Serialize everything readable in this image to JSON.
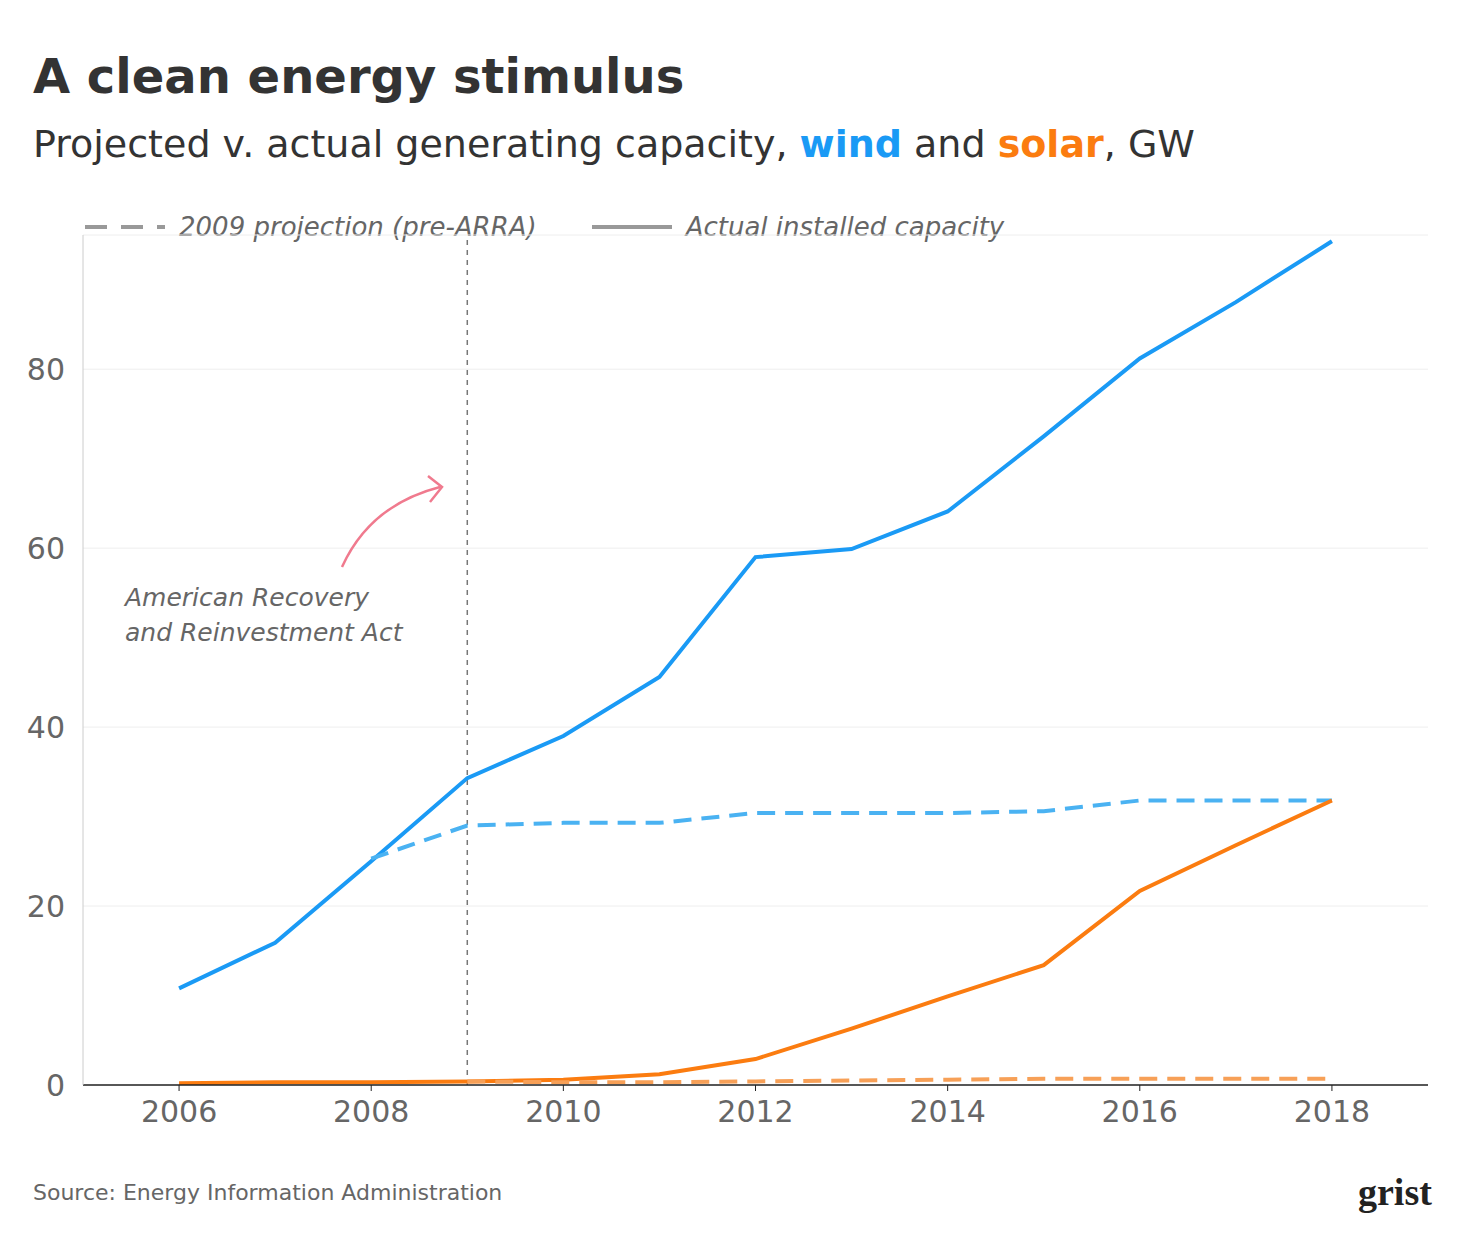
{
  "chart_data": {
    "type": "line",
    "title": "A clean energy stimulus",
    "subtitle": "Projected v. actual generating capacity, wind and solar, GW",
    "x": [
      2006,
      2007,
      2008,
      2009,
      2010,
      2011,
      2012,
      2013,
      2014,
      2015,
      2016,
      2017,
      2018
    ],
    "series": [
      {
        "name": "wind",
        "color": "#1a9af5",
        "line_style": "solid",
        "values": [
          10.8,
          15.9,
          25,
          34.3,
          39,
          45.6,
          59,
          59.9,
          64.1,
          72.5,
          81.2,
          87.5,
          94.3
        ]
      },
      {
        "name": "wind",
        "color": "#4ab2f2",
        "line_style": "dashed",
        "values": [
          null,
          null,
          25.3,
          29,
          29.3,
          29.3,
          30.4,
          30.4,
          30.4,
          30.6,
          31.8,
          31.8,
          31.8
        ]
      },
      {
        "name": "solar",
        "color": "#fb7c10",
        "line_style": "solid",
        "values": [
          0.2,
          0.3,
          0.3,
          0.4,
          0.6,
          1.2,
          2.9,
          6.3,
          9.9,
          13.4,
          21.7,
          26.8,
          31.8
        ]
      },
      {
        "name": "solar",
        "color": "#f7a057",
        "line_style": "dashed",
        "values": [
          null,
          null,
          null,
          0.4,
          0.3,
          0.3,
          0.4,
          0.5,
          0.6,
          0.7,
          0.7,
          0.7,
          0.7
        ]
      }
    ],
    "legend_labels": {
      "dashed": "2009 projection (pre-ARRA)",
      "solid": "Actual installed capacity"
    },
    "legend": "top",
    "annotations": [
      {
        "x": 2009,
        "text": "American Recovery\nand Reinvestment Act"
      }
    ],
    "xlim": [
      2005,
      2019
    ],
    "xticks": [
      2006,
      2008,
      2010,
      2012,
      2014,
      2016,
      2018
    ],
    "ylim": [
      0,
      95
    ],
    "yticks": [
      0,
      20,
      40,
      60,
      80
    ],
    "grid": true,
    "source": "Source: Energy Information Administration",
    "logo": "grist"
  }
}
